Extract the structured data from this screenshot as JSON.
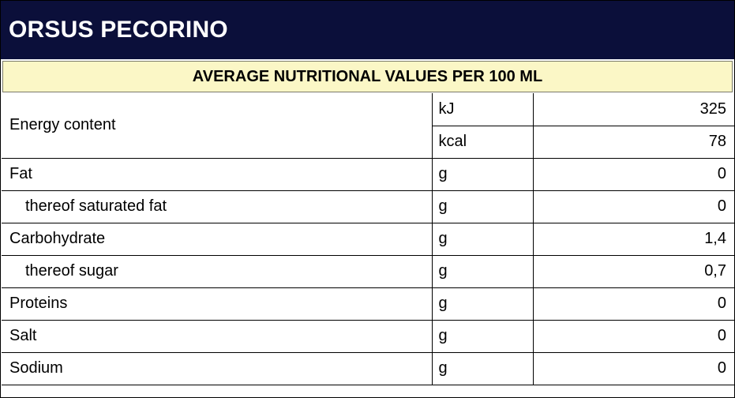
{
  "title": "ORSUS PECORINO",
  "subtitle": "AVERAGE NUTRITIONAL VALUES PER 100 ML",
  "energy": {
    "label": "Energy content",
    "kj_unit": "kJ",
    "kj_value": "325",
    "kcal_unit": "kcal",
    "kcal_value": "78"
  },
  "rows": [
    {
      "label": "Fat",
      "unit": "g",
      "value": "0"
    },
    {
      "label": "thereof saturated fat",
      "unit": "g",
      "value": "0"
    },
    {
      "label": "Carbohydrate",
      "unit": "g",
      "value": "1,4"
    },
    {
      "label": "thereof sugar",
      "unit": "g",
      "value": "0,7"
    },
    {
      "label": "Proteins",
      "unit": "g",
      "value": "0"
    },
    {
      "label": "Salt",
      "unit": "g",
      "value": "0"
    },
    {
      "label": "Sodium",
      "unit": "g",
      "value": "0"
    }
  ]
}
